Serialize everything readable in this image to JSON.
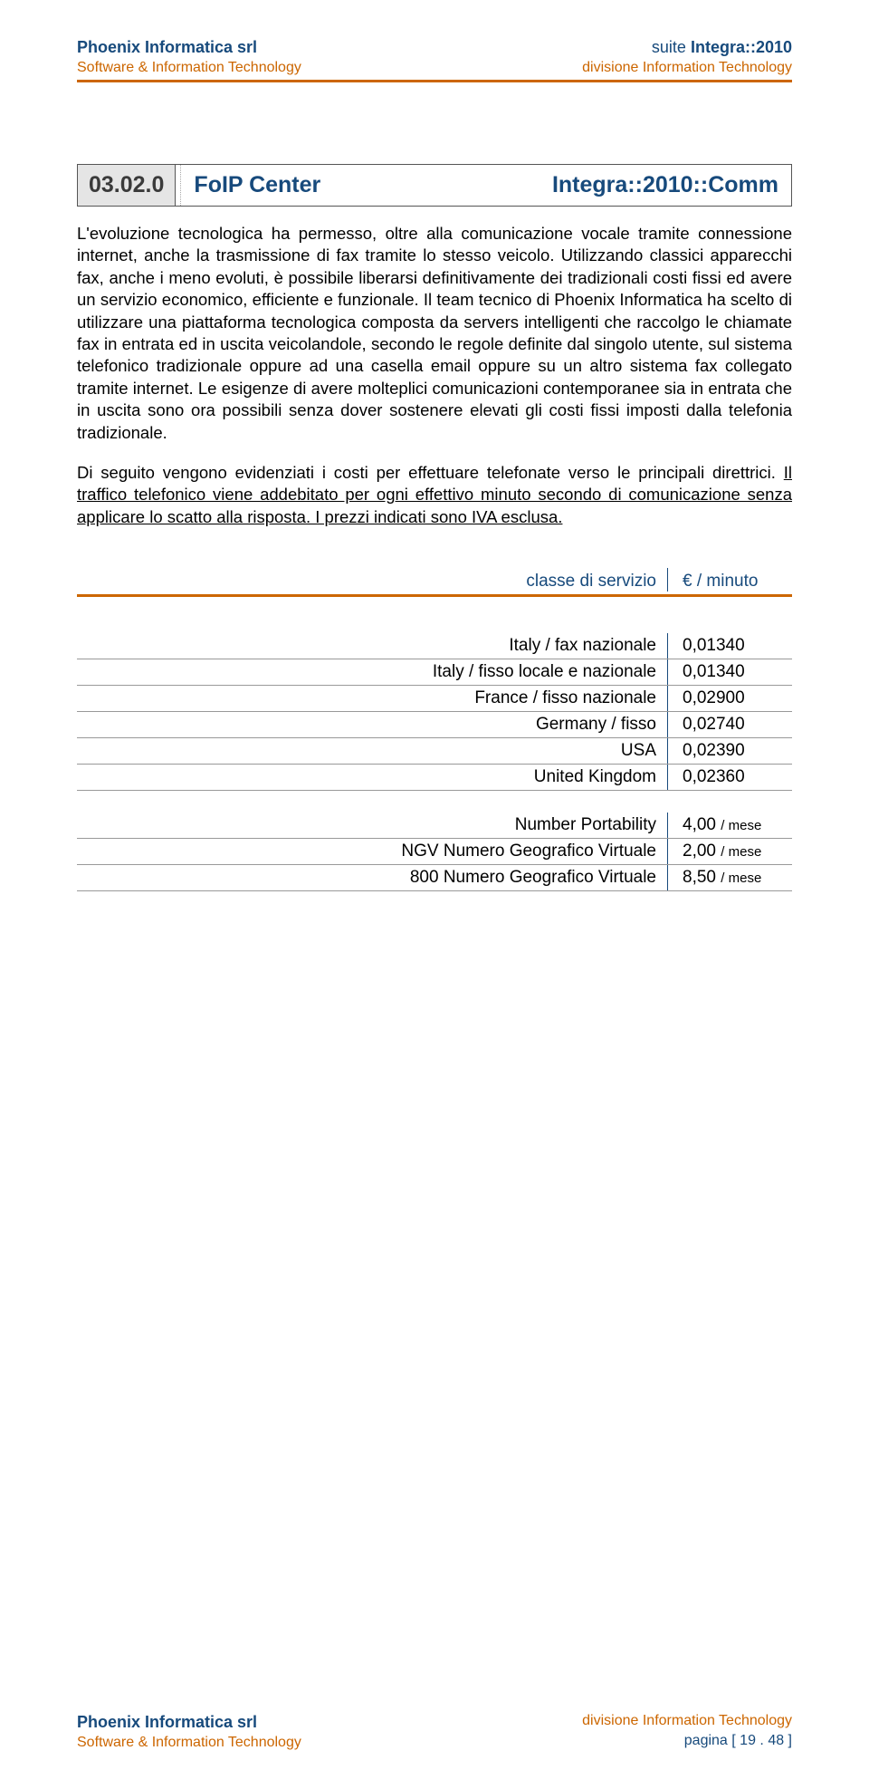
{
  "colors": {
    "accent": "#174a7c",
    "accent_rule": "#cc6600",
    "text": "#000000",
    "header_num_bg": "#e5e5e5"
  },
  "header": {
    "company": "Phoenix Informatica srl",
    "company_color": "#174a7c",
    "subtitle": "Software & Information Technology",
    "subtitle_color": "#cc6600",
    "suite_prefix": "suite ",
    "suite_brand": "Integra::2010",
    "division": "divisione Information Technology",
    "rule_color": "#cc6600"
  },
  "title": {
    "number": "03.02.0",
    "left": "FoIP Center",
    "right": "Integra::2010::Comm"
  },
  "body": {
    "para1": "L'evoluzione tecnologica ha permesso, oltre alla comunicazione vocale tramite connessione internet, anche la trasmissione di fax tramite lo stesso veicolo. Utilizzando classici apparecchi fax, anche i meno evoluti, è possibile liberarsi definitivamente dei tradizionali costi fissi ed avere un servizio economico, efficiente e funzionale. Il team tecnico di Phoenix Informatica ha scelto di utilizzare una piattaforma tecnologica composta da servers intelligenti che raccolgo le chiamate fax in entrata ed in uscita veicolandole, secondo le regole definite dal singolo utente, sul sistema telefonico tradizionale oppure ad una casella email oppure su un altro sistema fax collegato tramite internet. Le esigenze di avere molteplici comunicazioni contemporanee sia in entrata che in uscita sono ora possibili senza dover sostenere elevati gli costi fissi imposti dalla telefonia tradizionale.",
    "para2_plain": "Di seguito vengono evidenziati i costi per effettuare telefonate verso le principali direttrici. ",
    "para2_underlined": "Il traffico telefonico viene addebitato per ogni effettivo minuto secondo di comunicazione senza applicare lo scatto alla risposta. I prezzi indicati sono IVA esclusa."
  },
  "price_header": {
    "service_label": "classe di servizio",
    "price_label": "€ / minuto"
  },
  "prices_minute": [
    {
      "service": "Italy / fax nazionale",
      "value": "0,01340"
    },
    {
      "service": "Italy / fisso locale e nazionale",
      "value": "0,01340"
    },
    {
      "service": "France / fisso nazionale",
      "value": "0,02900"
    },
    {
      "service": "Germany / fisso",
      "value": "0,02740"
    },
    {
      "service": "USA",
      "value": "0,02390"
    },
    {
      "service": "United Kingdom",
      "value": "0,02360"
    }
  ],
  "prices_month_unit": "/ mese",
  "prices_month": [
    {
      "service": "Number Portability",
      "value": "4,00"
    },
    {
      "service": "NGV Numero Geografico Virtuale",
      "value": "2,00"
    },
    {
      "service": "800 Numero Geografico Virtuale",
      "value": "8,50"
    }
  ],
  "footer": {
    "company": "Phoenix Informatica srl",
    "subtitle": "Software & Information Technology",
    "division": "divisione Information Technology",
    "page_prefix": "pagina [ ",
    "page_current": "19",
    "page_sep": " . ",
    "page_total": "48",
    "page_suffix": " ]"
  }
}
